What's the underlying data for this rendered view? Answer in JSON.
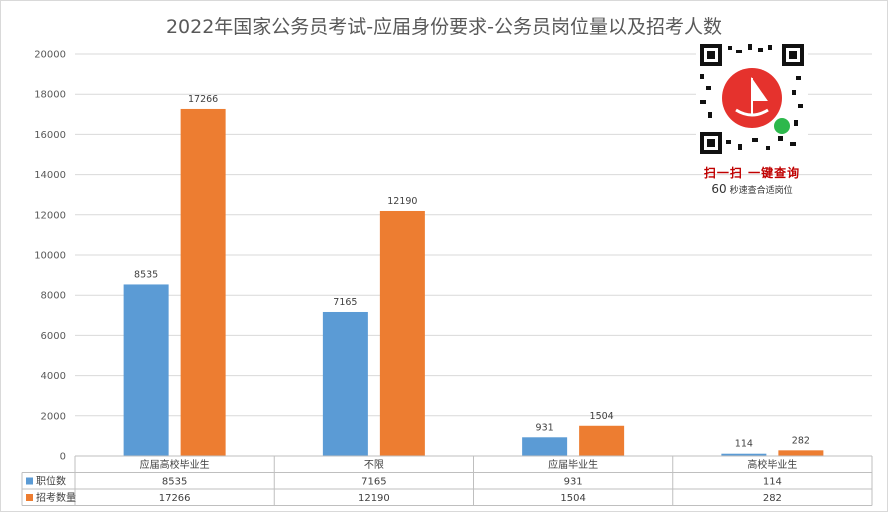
{
  "chart_data": {
    "type": "bar",
    "title": "2022年国家公务员考试-应届身份要求-公务员岗位量以及招考人数",
    "categories": [
      "应届高校毕业生",
      "不限",
      "应届毕业生",
      "高校毕业生"
    ],
    "series": [
      {
        "name": "职位数",
        "color": "#5b9bd5",
        "values": [
          8535,
          7165,
          931,
          114
        ]
      },
      {
        "name": "招考数量",
        "color": "#ed7d31",
        "values": [
          17266,
          12190,
          1504,
          282
        ]
      }
    ],
    "ylim": [
      0,
      20000
    ],
    "yticks": [
      0,
      2000,
      4000,
      6000,
      8000,
      10000,
      12000,
      14000,
      16000,
      18000,
      20000
    ],
    "grid": true,
    "legend": "data-table-below"
  },
  "qr": {
    "cta": "扫一扫 一键查询",
    "sub_num": "60",
    "sub_text": "秒速查合适岗位"
  }
}
